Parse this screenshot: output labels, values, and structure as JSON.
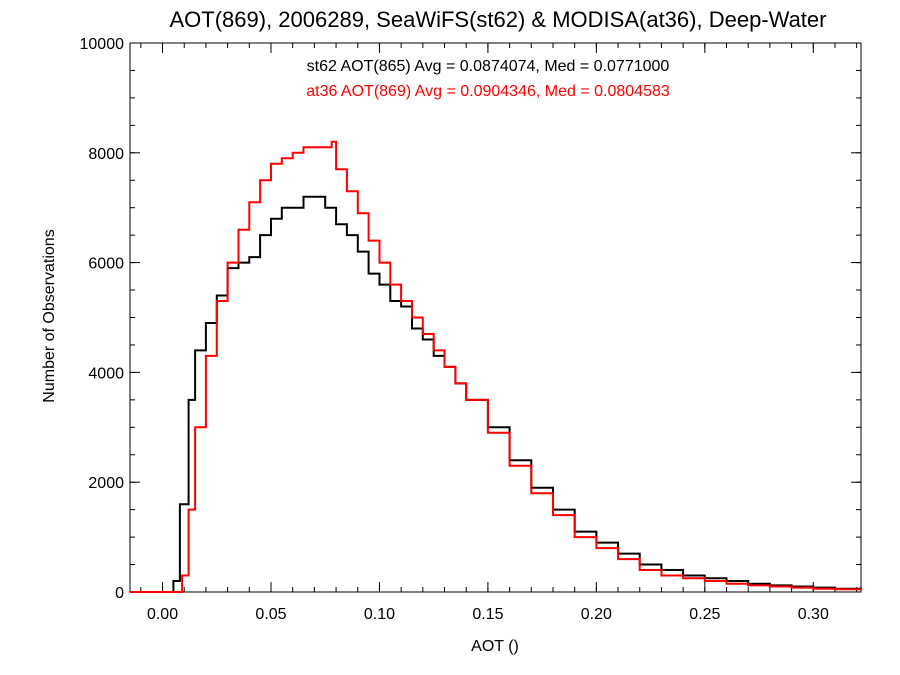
{
  "chart_data": {
    "type": "line",
    "title": "AOT(869), 2006289, SeaWiFS(st62) & MODISA(at36), Deep-Water",
    "xlabel": "AOT ()",
    "ylabel": "Number of Observations",
    "xlim": [
      -0.015,
      0.322
    ],
    "ylim": [
      0,
      10000
    ],
    "x_ticks": [
      0.0,
      0.05,
      0.1,
      0.15,
      0.2,
      0.25,
      0.3
    ],
    "x_tick_labels": [
      "0.00",
      "0.05",
      "0.10",
      "0.15",
      "0.20",
      "0.25",
      "0.30"
    ],
    "y_ticks": [
      0,
      2000,
      4000,
      6000,
      8000,
      10000
    ],
    "y_tick_labels": [
      "0",
      "2000",
      "4000",
      "6000",
      "8000",
      "10000"
    ],
    "annotations": [
      "st62 AOT(865) Avg = 0.0874074, Med = 0.0771000",
      "at36 AOT(869) Avg = 0.0904346, Med = 0.0804583"
    ],
    "step": true,
    "series": [
      {
        "color": "#000000",
        "x": [
          -0.015,
          0.0,
          0.005,
          0.008,
          0.012,
          0.015,
          0.02,
          0.025,
          0.03,
          0.035,
          0.04,
          0.045,
          0.05,
          0.055,
          0.06,
          0.065,
          0.07,
          0.075,
          0.08,
          0.085,
          0.09,
          0.095,
          0.1,
          0.105,
          0.11,
          0.115,
          0.12,
          0.125,
          0.13,
          0.135,
          0.14,
          0.15,
          0.16,
          0.17,
          0.18,
          0.19,
          0.2,
          0.21,
          0.22,
          0.23,
          0.24,
          0.25,
          0.26,
          0.27,
          0.28,
          0.29,
          0.3,
          0.31,
          0.322
        ],
        "values": [
          0,
          0,
          200,
          1600,
          3500,
          4400,
          4900,
          5400,
          5900,
          6000,
          6100,
          6500,
          6800,
          7000,
          7000,
          7200,
          7200,
          7000,
          6700,
          6500,
          6200,
          5800,
          5600,
          5300,
          5200,
          4800,
          4600,
          4300,
          4100,
          3800,
          3500,
          3000,
          2400,
          1900,
          1500,
          1100,
          900,
          700,
          500,
          400,
          300,
          250,
          200,
          150,
          120,
          100,
          80,
          60,
          50
        ]
      },
      {
        "color": "#ff0000",
        "x": [
          -0.015,
          0.005,
          0.009,
          0.012,
          0.015,
          0.02,
          0.025,
          0.03,
          0.035,
          0.04,
          0.045,
          0.05,
          0.055,
          0.06,
          0.065,
          0.07,
          0.075,
          0.078,
          0.08,
          0.085,
          0.09,
          0.095,
          0.1,
          0.105,
          0.11,
          0.115,
          0.12,
          0.125,
          0.13,
          0.135,
          0.14,
          0.15,
          0.16,
          0.17,
          0.18,
          0.19,
          0.2,
          0.21,
          0.22,
          0.23,
          0.24,
          0.25,
          0.26,
          0.27,
          0.28,
          0.29,
          0.3,
          0.31,
          0.322
        ],
        "values": [
          0,
          0,
          300,
          1500,
          3000,
          4300,
          5300,
          6000,
          6600,
          7100,
          7500,
          7800,
          7900,
          8000,
          8100,
          8100,
          8100,
          8200,
          7700,
          7300,
          6900,
          6400,
          6000,
          5600,
          5300,
          5000,
          4700,
          4400,
          4100,
          3800,
          3500,
          2900,
          2300,
          1800,
          1400,
          1000,
          800,
          600,
          400,
          300,
          250,
          200,
          150,
          120,
          100,
          80,
          60,
          50,
          40
        ]
      }
    ]
  }
}
